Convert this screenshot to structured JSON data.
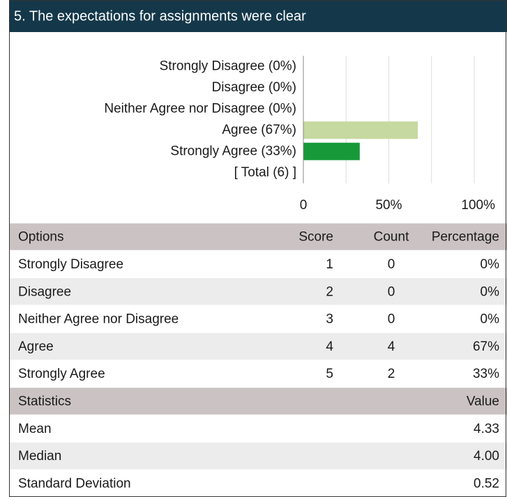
{
  "header": {
    "title": "5. The expectations for assignments were clear"
  },
  "chart_data": {
    "type": "bar",
    "orientation": "horizontal",
    "categories": [
      "Strongly Disagree (0%)",
      "Disagree (0%)",
      "Neither Agree nor Disagree (0%)",
      "Agree (67%)",
      "Strongly Agree (33%)",
      "[ Total (6) ]"
    ],
    "values": [
      0,
      0,
      0,
      67,
      33,
      null
    ],
    "colors": [
      null,
      null,
      null,
      "#c6d9a0",
      "#17993a",
      null
    ],
    "xlim": [
      0,
      100
    ],
    "xticks": [
      0,
      {
        "value": 50,
        "label": "50%"
      },
      {
        "value": 100,
        "label": "100%"
      }
    ],
    "minor_xticks": [
      25,
      75
    ],
    "grid": true
  },
  "table": {
    "header": [
      "Options",
      "Score",
      "Count",
      "Percentage"
    ],
    "rows": [
      [
        "Strongly Disagree",
        "1",
        "0",
        "0%"
      ],
      [
        "Disagree",
        "2",
        "0",
        "0%"
      ],
      [
        "Neither Agree nor Disagree",
        "3",
        "0",
        "0%"
      ],
      [
        "Agree",
        "4",
        "4",
        "67%"
      ],
      [
        "Strongly Agree",
        "5",
        "2",
        "33%"
      ]
    ]
  },
  "statistics": {
    "header": [
      "Statistics",
      "Value"
    ],
    "rows": [
      [
        "Mean",
        "4.33"
      ],
      [
        "Median",
        "4.00"
      ],
      [
        "Standard Deviation",
        "0.52"
      ]
    ]
  }
}
